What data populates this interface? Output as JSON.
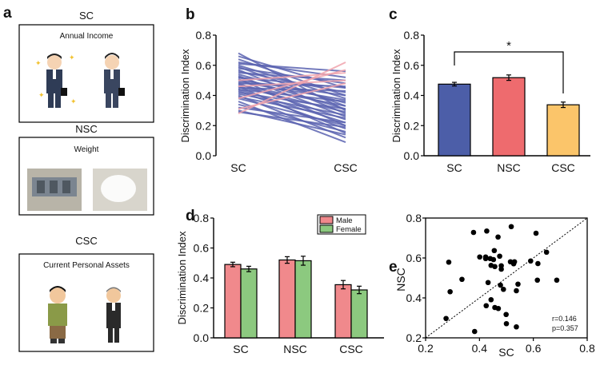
{
  "panel_a": {
    "letter": "a",
    "sections": [
      {
        "heading": "SC",
        "box_title": "Annual Income"
      },
      {
        "heading": "NSC",
        "box_title": "Weight"
      },
      {
        "heading": "CSC",
        "box_title": "Current Personal Assets"
      }
    ]
  },
  "chart_data": [
    {
      "id": "b",
      "letter": "b",
      "type": "line",
      "ylabel": "Discrimination Index",
      "ylim": [
        0,
        0.8
      ],
      "yticks": [
        "0.0",
        "0.2",
        "0.4",
        "0.6",
        "0.8"
      ],
      "categories": [
        "SC",
        "CSC"
      ],
      "colors": {
        "decrease": "#5b63b0",
        "increase": "#f0a3ad"
      },
      "pairs": [
        [
          0.68,
          0.3
        ],
        [
          0.66,
          0.45
        ],
        [
          0.64,
          0.4
        ],
        [
          0.62,
          0.52
        ],
        [
          0.61,
          0.56
        ],
        [
          0.6,
          0.38
        ],
        [
          0.59,
          0.33
        ],
        [
          0.58,
          0.48
        ],
        [
          0.57,
          0.28
        ],
        [
          0.56,
          0.42
        ],
        [
          0.55,
          0.5
        ],
        [
          0.54,
          0.35
        ],
        [
          0.53,
          0.26
        ],
        [
          0.52,
          0.45
        ],
        [
          0.52,
          0.31
        ],
        [
          0.51,
          0.2
        ],
        [
          0.5,
          0.4
        ],
        [
          0.5,
          0.55
        ],
        [
          0.49,
          0.37
        ],
        [
          0.48,
          0.24
        ],
        [
          0.48,
          0.46
        ],
        [
          0.47,
          0.33
        ],
        [
          0.46,
          0.15
        ],
        [
          0.46,
          0.29
        ],
        [
          0.45,
          0.43
        ],
        [
          0.44,
          0.22
        ],
        [
          0.44,
          0.36
        ],
        [
          0.43,
          0.18
        ],
        [
          0.42,
          0.31
        ],
        [
          0.41,
          0.27
        ],
        [
          0.4,
          0.12
        ],
        [
          0.39,
          0.25
        ],
        [
          0.38,
          0.2
        ],
        [
          0.36,
          0.09
        ],
        [
          0.34,
          0.16
        ],
        [
          0.32,
          0.22
        ],
        [
          0.3,
          0.14
        ],
        [
          0.29,
          0.19
        ],
        [
          0.28,
          0.62
        ],
        [
          0.38,
          0.57
        ],
        [
          0.31,
          0.48
        ],
        [
          0.46,
          0.5
        ]
      ]
    },
    {
      "id": "c",
      "letter": "c",
      "type": "bar",
      "ylabel": "Discrimination Index",
      "ylim": [
        0,
        0.8
      ],
      "yticks": [
        "0.0",
        "0.2",
        "0.4",
        "0.6",
        "0.8"
      ],
      "categories": [
        "SC",
        "NSC",
        "CSC"
      ],
      "values": [
        0.475,
        0.518,
        0.338
      ],
      "errors": [
        0.012,
        0.018,
        0.018
      ],
      "colors": [
        "#4c5ea8",
        "#ee6b6e",
        "#fbc56a"
      ],
      "annotation": "*"
    },
    {
      "id": "d",
      "letter": "d",
      "type": "bar",
      "ylabel": "Discrimination Index",
      "ylim": [
        0,
        0.8
      ],
      "yticks": [
        "0.0",
        "0.2",
        "0.4",
        "0.6",
        "0.8"
      ],
      "categories": [
        "SC",
        "NSC",
        "CSC"
      ],
      "series": [
        {
          "name": "Male",
          "color": "#f0898c",
          "values": [
            0.49,
            0.52,
            0.355
          ],
          "errors": [
            0.015,
            0.022,
            0.028
          ]
        },
        {
          "name": "Female",
          "color": "#8cc97f",
          "values": [
            0.46,
            0.515,
            0.32
          ],
          "errors": [
            0.018,
            0.03,
            0.025
          ]
        }
      ],
      "legend": "top-right"
    },
    {
      "id": "e",
      "letter": "e",
      "type": "scatter",
      "xlabel": "SC",
      "ylabel": "NSC",
      "xlim": [
        0.2,
        0.8
      ],
      "ylim": [
        0.2,
        0.8
      ],
      "xticks": [
        "0.2",
        "0.4",
        "0.6",
        "0.8"
      ],
      "yticks": [
        "0.2",
        "0.4",
        "0.6",
        "0.8"
      ],
      "stats": [
        "r=0.146",
        "p=0.357"
      ],
      "points": [
        [
          0.378,
          0.728
        ],
        [
          0.427,
          0.735
        ],
        [
          0.518,
          0.757
        ],
        [
          0.61,
          0.724
        ],
        [
          0.469,
          0.705
        ],
        [
          0.455,
          0.637
        ],
        [
          0.649,
          0.629
        ],
        [
          0.401,
          0.605
        ],
        [
          0.423,
          0.605
        ],
        [
          0.423,
          0.597
        ],
        [
          0.44,
          0.597
        ],
        [
          0.452,
          0.592
        ],
        [
          0.475,
          0.609
        ],
        [
          0.286,
          0.579
        ],
        [
          0.515,
          0.581
        ],
        [
          0.53,
          0.581
        ],
        [
          0.527,
          0.571
        ],
        [
          0.59,
          0.585
        ],
        [
          0.617,
          0.572
        ],
        [
          0.443,
          0.563
        ],
        [
          0.457,
          0.557
        ],
        [
          0.481,
          0.561
        ],
        [
          0.481,
          0.544
        ],
        [
          0.335,
          0.493
        ],
        [
          0.432,
          0.477
        ],
        [
          0.478,
          0.464
        ],
        [
          0.489,
          0.443
        ],
        [
          0.543,
          0.469
        ],
        [
          0.537,
          0.436
        ],
        [
          0.615,
          0.489
        ],
        [
          0.687,
          0.489
        ],
        [
          0.291,
          0.431
        ],
        [
          0.443,
          0.391
        ],
        [
          0.425,
          0.361
        ],
        [
          0.457,
          0.352
        ],
        [
          0.47,
          0.347
        ],
        [
          0.499,
          0.317
        ],
        [
          0.5,
          0.271
        ],
        [
          0.537,
          0.255
        ],
        [
          0.276,
          0.297
        ],
        [
          0.382,
          0.232
        ]
      ]
    }
  ]
}
